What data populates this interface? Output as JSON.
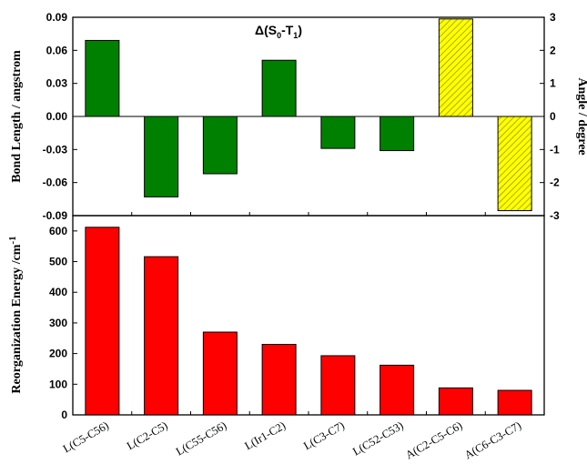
{
  "chart_data": [
    {
      "type": "bar",
      "title_main": "Δ(S",
      "title_sub0": "0",
      "title_mid": "-T",
      "title_sub1": "1",
      "title_close": ")",
      "ylabel": "Bond Length  / angstrom",
      "y2label": "Angle / degree",
      "ylim": [
        -0.09,
        0.09
      ],
      "y2lim": [
        -3,
        3
      ],
      "yticks": [
        "0.09",
        "0.06",
        "0.03",
        "0.00",
        "-0.03",
        "-0.06",
        "-0.09"
      ],
      "y2ticks": [
        "3",
        "2",
        "1",
        "0",
        "-1",
        "-2",
        "-3"
      ],
      "categories": [
        "L(C5-C56)",
        "L(C2-C5)",
        "L(C55-C56)",
        "L(Ir1-C2)",
        "L(C3-C7)",
        "L(C52-C53)",
        "A(C2-C5-C6)",
        "A(C6-C3-C7)"
      ],
      "series": [
        {
          "axis": "left",
          "color": "#008000",
          "values": [
            0.069,
            -0.073,
            -0.052,
            0.051,
            -0.029,
            -0.031,
            null,
            null
          ]
        },
        {
          "axis": "right",
          "color": "#ffff00",
          "pattern": "hatched",
          "values": [
            null,
            null,
            null,
            null,
            null,
            null,
            2.95,
            -2.85
          ]
        }
      ]
    },
    {
      "type": "bar",
      "ylabel": "Reorganization Energy /cm",
      "ylabel_sup": "-1",
      "ylim": [
        0,
        650
      ],
      "yticks": [
        "600",
        "500",
        "400",
        "300",
        "200",
        "100",
        "0"
      ],
      "categories": [
        "L(C5-C56)",
        "L(C2-C5)",
        "L(C55-C56)",
        "L(Ir1-C2)",
        "L(C3-C7)",
        "L(C52-C53)",
        "A(C2-C5-C6)",
        "A(C6-C3-C7)"
      ],
      "series": [
        {
          "color": "#ff0000",
          "values": [
            612,
            516,
            270,
            230,
            193,
            162,
            88,
            80
          ]
        }
      ]
    }
  ]
}
